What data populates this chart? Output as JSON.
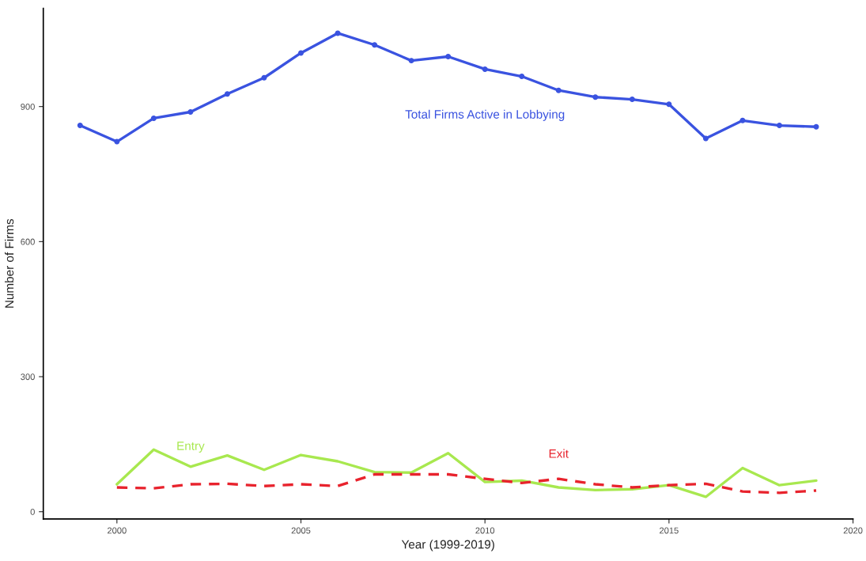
{
  "chart_data": {
    "type": "line",
    "xlabel": "Year (1999-2019)",
    "ylabel": "Number of Firms",
    "xlim": [
      1998,
      2020
    ],
    "ylim": [
      -16,
      1118
    ],
    "xticks": [
      2000,
      2005,
      2010,
      2015,
      2020
    ],
    "yticks": [
      0,
      300,
      600,
      900
    ],
    "grid": false,
    "legend": false,
    "series": [
      {
        "name": "Total Firms Active in Lobbying",
        "color": "#3a53e0",
        "marker": "circle",
        "line_style": "solid",
        "x": [
          1999,
          2000,
          2001,
          2002,
          2003,
          2004,
          2005,
          2006,
          2007,
          2008,
          2009,
          2010,
          2011,
          2012,
          2013,
          2014,
          2015,
          2016,
          2017,
          2018,
          2019
        ],
        "values": [
          858,
          822,
          874,
          888,
          928,
          964,
          1019,
          1063,
          1037,
          1002,
          1011,
          983,
          967,
          936,
          921,
          916,
          905,
          829,
          869,
          858,
          855
        ]
      },
      {
        "name": "Entry",
        "color": "#a8e84f",
        "marker": "none",
        "line_style": "solid",
        "x": [
          2000,
          2001,
          2002,
          2003,
          2004,
          2005,
          2006,
          2007,
          2008,
          2009,
          2010,
          2011,
          2012,
          2013,
          2014,
          2015,
          2016,
          2017,
          2018,
          2019
        ],
        "values": [
          61,
          138,
          100,
          125,
          93,
          126,
          112,
          88,
          87,
          130,
          66,
          69,
          54,
          48,
          50,
          59,
          33,
          97,
          59,
          69
        ]
      },
      {
        "name": "Exit",
        "color": "#e8232d",
        "marker": "none",
        "line_style": "dashed",
        "x": [
          2000,
          2001,
          2002,
          2003,
          2004,
          2005,
          2006,
          2007,
          2008,
          2009,
          2010,
          2011,
          2012,
          2013,
          2014,
          2015,
          2016,
          2017,
          2018,
          2019
        ],
        "values": [
          54,
          52,
          61,
          62,
          57,
          61,
          57,
          83,
          83,
          83,
          73,
          64,
          73,
          61,
          54,
          59,
          62,
          45,
          42,
          47
        ]
      }
    ]
  }
}
